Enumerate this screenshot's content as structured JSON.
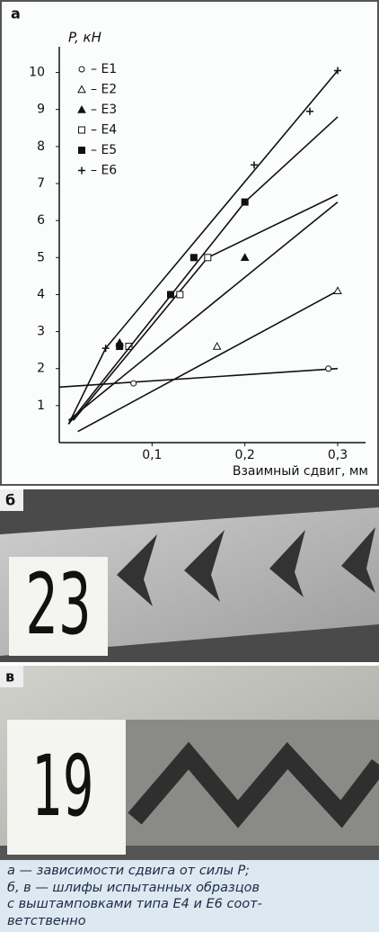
{
  "chart_data": {
    "type": "line",
    "panel": "а",
    "ylabel": "P, кН",
    "xlabel": "Взаимный сдвиг, мм",
    "xlim": [
      0,
      0.33
    ],
    "ylim": [
      0,
      10.5
    ],
    "xticks": [
      {
        "value": 0.1,
        "label": "0,1"
      },
      {
        "value": 0.2,
        "label": "0,2"
      },
      {
        "value": 0.3,
        "label": "0,3"
      }
    ],
    "yticks": [
      1,
      2,
      3,
      4,
      5,
      6,
      7,
      8,
      9,
      10
    ],
    "series": [
      {
        "name": "– E1",
        "color": "#111",
        "marker": "open-circle",
        "x": [
          0.08,
          0.29
        ],
        "values": [
          1.6,
          2.0
        ],
        "fit": {
          "x": [
            0,
            0.3
          ],
          "values": [
            1.5,
            2.0
          ]
        }
      },
      {
        "name": "– E2",
        "color": "#111",
        "marker": "open-triangle",
        "x": [
          0.17,
          0.3
        ],
        "values": [
          2.6,
          4.1
        ],
        "fit": {
          "x": [
            0.02,
            0.3
          ],
          "values": [
            0.3,
            4.1
          ]
        }
      },
      {
        "name": "– E3",
        "color": "#111",
        "marker": "filled-triangle",
        "x": [
          0.065,
          0.2
        ],
        "values": [
          2.7,
          5.0
        ],
        "fit": {
          "x": [
            0.01,
            0.3
          ],
          "values": [
            0.6,
            6.5
          ]
        }
      },
      {
        "name": "– E4",
        "color": "#111",
        "marker": "open-square",
        "x": [
          0.075,
          0.13,
          0.16
        ],
        "values": [
          2.6,
          4.0,
          5.0
        ],
        "fit": {
          "x": [
            0.015,
            0.16,
            0.3
          ],
          "values": [
            0.6,
            5.0,
            6.7
          ]
        }
      },
      {
        "name": "– E5",
        "color": "#111",
        "marker": "filled-square",
        "x": [
          0.065,
          0.12,
          0.145,
          0.2
        ],
        "values": [
          2.6,
          4.0,
          5.0,
          6.5
        ],
        "fit": {
          "x": [
            0.01,
            0.2,
            0.3
          ],
          "values": [
            0.5,
            6.5,
            8.8
          ]
        }
      },
      {
        "name": "– E6",
        "color": "#111",
        "marker": "cross",
        "x": [
          0.05,
          0.21,
          0.27,
          0.3
        ],
        "values": [
          2.55,
          7.5,
          8.95,
          10.05
        ],
        "fit": {
          "x": [
            0.01,
            0.05,
            0.3
          ],
          "values": [
            0.5,
            2.55,
            10.05
          ]
        }
      }
    ]
  },
  "photos": [
    {
      "panel": "б",
      "label": "23"
    },
    {
      "panel": "в",
      "label": "19"
    }
  ],
  "caption": [
    "а — зависимости сдвига от силы P;",
    "б, в — шлифы испытанных образцов",
    "с выштамповками типа E4 и E6 соот-",
    "ветственно"
  ]
}
